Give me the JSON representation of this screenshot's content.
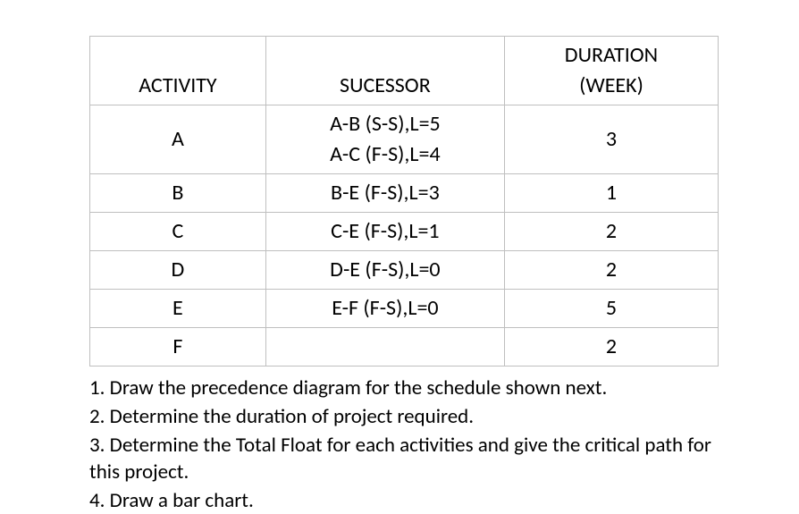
{
  "table": {
    "columns": {
      "activity": "ACTIVITY",
      "successor": "SUCESSOR",
      "duration_top": "DURATION",
      "duration_bottom": "(WEEK)"
    },
    "rows": [
      {
        "activity": "A",
        "successor_lines": [
          "A-B (S-S),L=5",
          "A-C (F-S),L=4"
        ],
        "duration": "3"
      },
      {
        "activity": "B",
        "successor_lines": [
          "B-E (F-S),L=3"
        ],
        "duration": "1"
      },
      {
        "activity": "C",
        "successor_lines": [
          "C-E (F-S),L=1"
        ],
        "duration": "2"
      },
      {
        "activity": "D",
        "successor_lines": [
          "D-E (F-S),L=0"
        ],
        "duration": "2"
      },
      {
        "activity": "E",
        "successor_lines": [
          "E-F (F-S),L=0"
        ],
        "duration": "5"
      },
      {
        "activity": "F",
        "successor_lines": [
          ""
        ],
        "duration": "2"
      }
    ],
    "border_color": "#bfbfbf",
    "background_color": "#ffffff",
    "font_size": 24
  },
  "questions": [
    "1. Draw the precedence diagram for the schedule shown next.",
    "2. Determine the duration of project required.",
    "3. Determine the Total Float for each activities and give the critical path for this project.",
    "4. Draw a bar chart."
  ]
}
